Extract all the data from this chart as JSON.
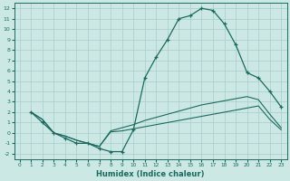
{
  "xlabel": "Humidex (Indice chaleur)",
  "bg_color": "#cce8e4",
  "grid_color": "#aacccc",
  "line_color": "#1a6b5e",
  "xlim": [
    -0.5,
    23.5
  ],
  "ylim": [
    -2.5,
    12.5
  ],
  "xticks": [
    0,
    1,
    2,
    3,
    4,
    5,
    6,
    7,
    8,
    9,
    10,
    11,
    12,
    13,
    14,
    15,
    16,
    17,
    18,
    19,
    20,
    21,
    22,
    23
  ],
  "yticks": [
    -2,
    -1,
    0,
    1,
    2,
    3,
    4,
    5,
    6,
    7,
    8,
    9,
    10,
    11,
    12
  ],
  "line1_x": [
    1,
    2,
    3,
    4,
    5,
    6,
    7,
    8,
    9,
    10,
    11,
    12,
    13,
    14,
    15,
    16,
    17,
    18,
    19,
    20,
    21,
    22,
    23
  ],
  "line1_y": [
    2,
    1,
    0,
    -0.5,
    -1.0,
    -1.0,
    -1.5,
    -1.8,
    -1.8,
    0.3,
    5.3,
    7.3,
    9.0,
    11.0,
    11.3,
    12.0,
    11.8,
    10.5,
    8.5,
    5.8,
    5.3,
    4.0,
    2.5
  ],
  "line2_x": [
    1,
    2,
    3,
    4,
    5,
    6,
    7,
    8,
    9,
    10,
    11,
    12,
    13,
    14,
    15,
    16,
    17,
    18,
    19,
    20,
    21,
    22,
    23
  ],
  "line2_y": [
    2,
    1.3,
    0.0,
    -0.3,
    -0.7,
    -1.0,
    -1.3,
    0.2,
    0.5,
    0.8,
    1.2,
    1.5,
    1.8,
    2.1,
    2.4,
    2.7,
    2.9,
    3.1,
    3.3,
    3.5,
    3.2,
    1.8,
    0.5
  ],
  "line3_x": [
    1,
    2,
    3,
    4,
    5,
    6,
    7,
    8,
    9,
    10,
    11,
    12,
    13,
    14,
    15,
    16,
    17,
    18,
    19,
    20,
    21,
    22,
    23
  ],
  "line3_y": [
    2,
    1.3,
    0.0,
    -0.3,
    -0.7,
    -1.0,
    -1.3,
    0.1,
    0.2,
    0.4,
    0.6,
    0.8,
    1.0,
    1.2,
    1.4,
    1.6,
    1.8,
    2.0,
    2.2,
    2.4,
    2.6,
    1.3,
    0.3
  ]
}
